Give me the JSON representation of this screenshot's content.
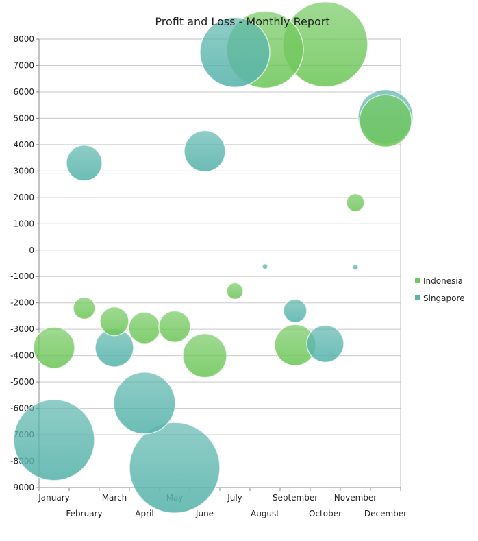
{
  "chart_data": {
    "type": "bubble",
    "title": "Profit and Loss - Monthly Report",
    "categories": [
      "January",
      "February",
      "March",
      "April",
      "May",
      "June",
      "July",
      "August",
      "September",
      "October",
      "November",
      "December"
    ],
    "ylim": [
      -9000,
      8000
    ],
    "yticks": [
      8000,
      7000,
      6000,
      5000,
      4000,
      3000,
      2000,
      1000,
      0,
      -1000,
      -2000,
      -3000,
      -4000,
      -5000,
      -6000,
      -7000,
      -8000,
      -9000
    ],
    "grid": true,
    "legend_position": "right",
    "series": [
      {
        "name": "Indonesia",
        "color": "#72c85e",
        "points": [
          {
            "x": "January",
            "y": -3700,
            "size": 30
          },
          {
            "x": "February",
            "y": -2200,
            "size": 16
          },
          {
            "x": "March",
            "y": -2700,
            "size": 21
          },
          {
            "x": "April",
            "y": -2950,
            "size": 23
          },
          {
            "x": "May",
            "y": -2900,
            "size": 23
          },
          {
            "x": "June",
            "y": -4000,
            "size": 32
          },
          {
            "x": "July",
            "y": -1550,
            "size": 12
          },
          {
            "x": "August",
            "y": 7600,
            "size": 56
          },
          {
            "x": "September",
            "y": -3600,
            "size": 30
          },
          {
            "x": "October",
            "y": 7800,
            "size": 62
          },
          {
            "x": "November",
            "y": 1800,
            "size": 13
          },
          {
            "x": "December",
            "y": 4900,
            "size": 38
          }
        ]
      },
      {
        "name": "Singapore",
        "color": "#5bb5ad",
        "points": [
          {
            "x": "January",
            "y": -7200,
            "size": 59
          },
          {
            "x": "February",
            "y": 3300,
            "size": 26
          },
          {
            "x": "March",
            "y": -3700,
            "size": 28
          },
          {
            "x": "April",
            "y": -5800,
            "size": 45
          },
          {
            "x": "May",
            "y": -8250,
            "size": 66
          },
          {
            "x": "June",
            "y": 3750,
            "size": 30
          },
          {
            "x": "July",
            "y": 7500,
            "size": 51
          },
          {
            "x": "August",
            "y": -620,
            "size": 4
          },
          {
            "x": "September",
            "y": -2300,
            "size": 17
          },
          {
            "x": "October",
            "y": -3550,
            "size": 27
          },
          {
            "x": "November",
            "y": -650,
            "size": 4
          },
          {
            "x": "December",
            "y": 5050,
            "size": 40
          }
        ]
      }
    ]
  }
}
